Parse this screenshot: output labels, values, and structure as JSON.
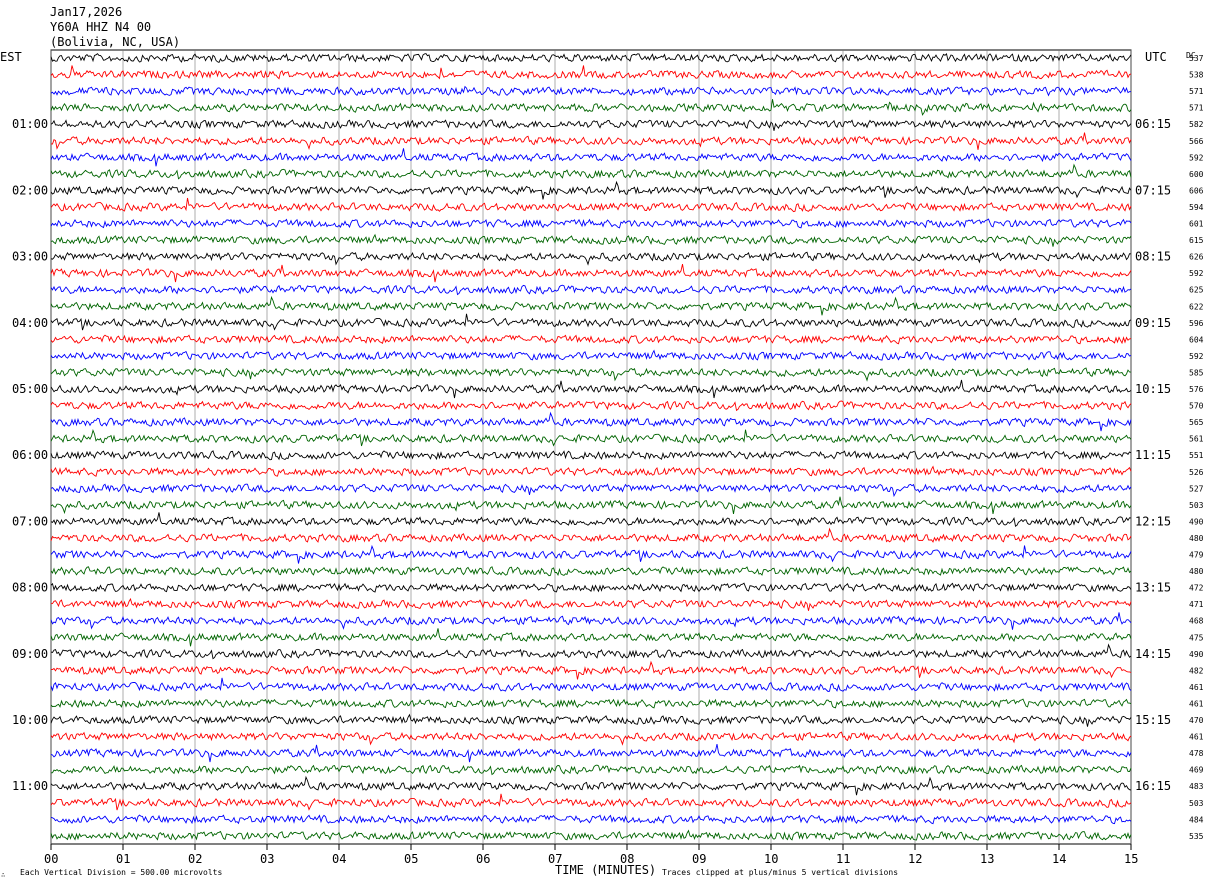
{
  "header": {
    "date": "Jan17,2026",
    "station": "Y60A HHZ N4 00",
    "location": "(Bolivia, NC, USA)"
  },
  "left_zone_label": "EST",
  "right_zone_label": "UTC",
  "dc_header": "DC",
  "footer": {
    "scale_note": "Each Vertical Division =   500.00 microvolts",
    "clip_note": "Traces clipped at plus/minus 5 vertical divisions"
  },
  "trace_colors": [
    "#000000",
    "#ff0000",
    "#0000ff",
    "#006400"
  ],
  "chart_data": {
    "type": "line",
    "xlabel": "TIME (MINUTES)",
    "xlim": [
      0,
      15
    ],
    "x_ticks": [
      "00",
      "01",
      "02",
      "03",
      "04",
      "05",
      "06",
      "07",
      "08",
      "09",
      "10",
      "11",
      "12",
      "13",
      "14",
      "15"
    ],
    "left_hour_labels": [
      "01:00",
      "02:00",
      "03:00",
      "04:00",
      "05:00",
      "06:00",
      "07:00",
      "08:00",
      "09:00",
      "10:00",
      "11:00"
    ],
    "right_hour_labels": [
      "06:15",
      "07:15",
      "08:15",
      "09:15",
      "10:15",
      "11:15",
      "12:15",
      "13:15",
      "14:15",
      "15:15",
      "16:15"
    ],
    "dc_offsets": [
      537,
      538,
      571,
      571,
      582,
      566,
      592,
      600,
      606,
      594,
      601,
      615,
      626,
      592,
      625,
      622,
      596,
      604,
      592,
      585,
      576,
      570,
      565,
      561,
      551,
      526,
      527,
      503,
      490,
      480,
      479,
      480,
      472,
      471,
      468,
      475,
      490,
      482,
      461,
      461,
      470,
      461,
      478,
      469,
      483,
      503,
      484,
      535
    ],
    "trace_count": 48,
    "traces_per_hour": 4
  }
}
